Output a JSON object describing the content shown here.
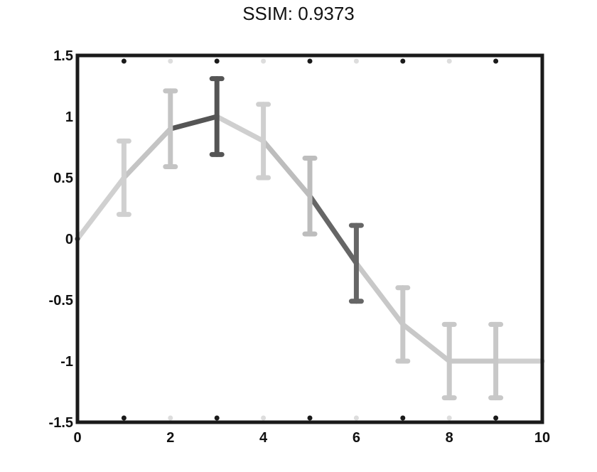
{
  "chart_data": {
    "type": "line",
    "title": "SSIM: 0.9373",
    "xlabel": "",
    "ylabel": "",
    "xlim": [
      0,
      10
    ],
    "ylim": [
      -1.5,
      1.5
    ],
    "x_ticks": [
      0,
      2,
      4,
      6,
      8,
      10
    ],
    "x_tick_labels": [
      "0",
      "2",
      "4",
      "6",
      "8",
      "10"
    ],
    "y_ticks": [
      -1.5,
      -1,
      -0.5,
      0,
      0.5,
      1,
      1.5
    ],
    "y_tick_labels": [
      "-1.5",
      "-1",
      "-0.5",
      "0",
      "0.5",
      "1",
      "1.5"
    ],
    "grid": false,
    "series": [
      {
        "x": [
          0,
          1,
          2,
          3,
          4,
          5,
          6,
          7,
          8,
          9,
          10
        ],
        "y": [
          0,
          0.5,
          0.9,
          1.0,
          0.8,
          0.35,
          -0.2,
          -0.7,
          -1.0,
          -1.0,
          -1.0
        ],
        "error": [
          0,
          0.3,
          0.31,
          0.31,
          0.3,
          0.31,
          0.31,
          0.3,
          0.3,
          0.3,
          0
        ],
        "colors": [
          "#444444",
          "#d0d0d0",
          "#c4c4c4",
          "#555555",
          "#cfcfcf",
          "#bdbdbd",
          "#666666",
          "#c8c8c8",
          "#c8c8c8",
          "#c8c8c8",
          "#cfcfcf"
        ]
      }
    ]
  }
}
